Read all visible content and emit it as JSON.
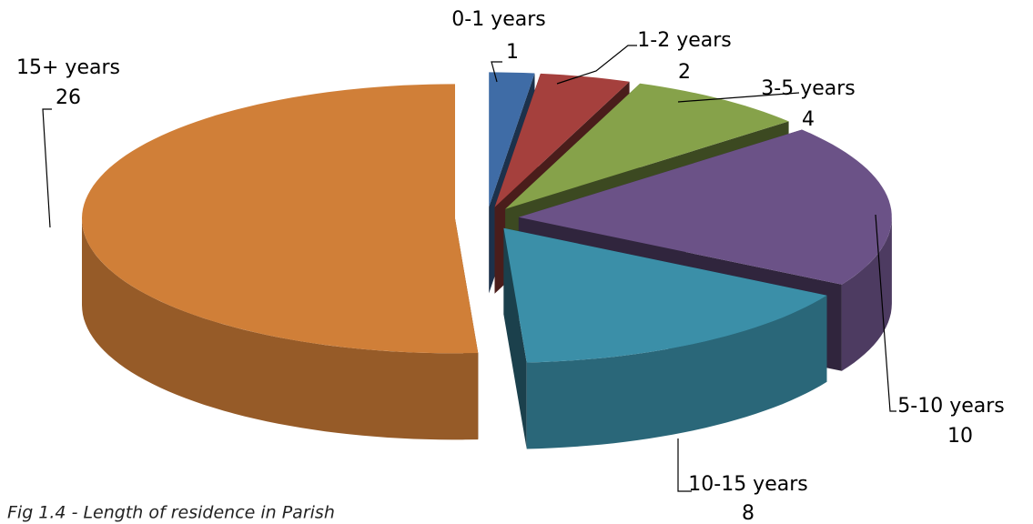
{
  "chart_data": {
    "type": "pie3d",
    "caption": "Fig 1.4 - Length of residence in Parish",
    "categories": [
      "0-1 years",
      "1-2 years",
      "3-5 years",
      "5-10 years",
      "10-15 years",
      "15+ years"
    ],
    "values": [
      1,
      2,
      4,
      10,
      8,
      26
    ],
    "colors": [
      "#3f6ca6",
      "#a5403d",
      "#86a24a",
      "#6b5287",
      "#3b8fa8",
      "#d07f38"
    ],
    "exploded": true
  }
}
